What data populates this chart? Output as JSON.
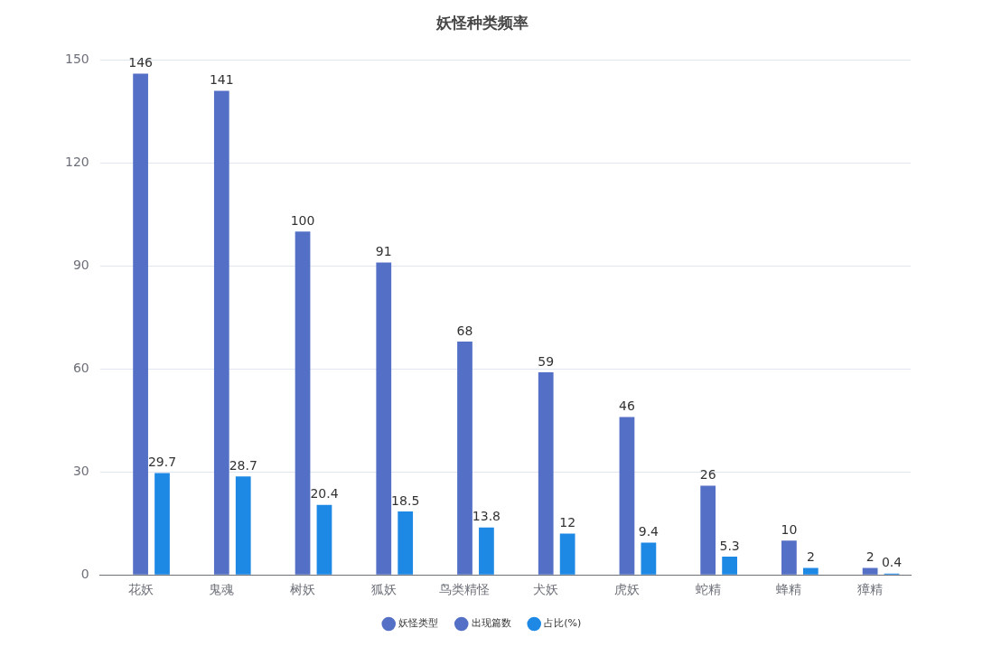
{
  "chart_data": {
    "type": "bar",
    "title": "妖怪种类频率",
    "categories": [
      "花妖",
      "鬼魂",
      "树妖",
      "狐妖",
      "鸟类精怪",
      "犬妖",
      "虎妖",
      "蛇精",
      "蜂精",
      "獐精"
    ],
    "series": [
      {
        "name": "妖怪类型",
        "color": "#5470c6",
        "values": [
          null,
          null,
          null,
          null,
          null,
          null,
          null,
          null,
          null,
          null
        ]
      },
      {
        "name": "出现篇数",
        "color": "#5470c6",
        "values": [
          146,
          141,
          100,
          91,
          68,
          59,
          46,
          26,
          10,
          2
        ]
      },
      {
        "name": "占比(%)",
        "color": "#1e88e5",
        "values": [
          29.7,
          28.7,
          20.4,
          18.5,
          13.8,
          12,
          9.4,
          5.3,
          2,
          0.4
        ]
      }
    ],
    "ylim": [
      0,
      150
    ],
    "yticks": [
      0,
      30,
      60,
      90,
      120,
      150
    ],
    "grid": "y",
    "legend": "bottom",
    "data_labels": true
  }
}
